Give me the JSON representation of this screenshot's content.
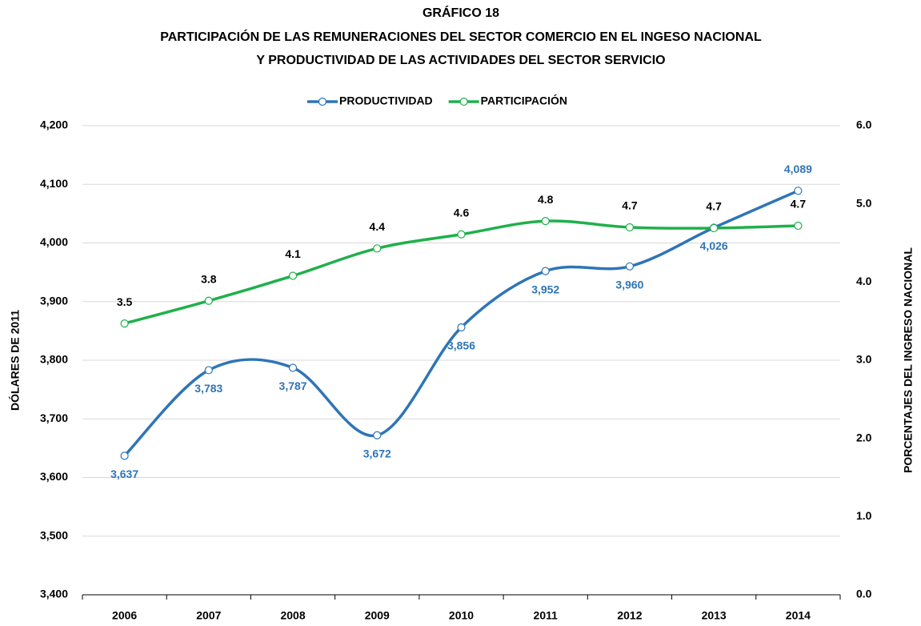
{
  "chart_data": {
    "type": "line",
    "title": [
      "GRÁFICO 18",
      "PARTICIPACIÓN DE LAS REMUNERACIONES DEL SECTOR COMERCIO EN EL INGESO NACIONAL",
      "Y PRODUCTIVIDAD DE LAS ACTIVIDADES DEL SECTOR SERVICIO"
    ],
    "y_label": "DÓLARES DE 2011",
    "y2_label": "PORCENTAJES DEL INGRESO NACIONAL",
    "categories": [
      "2006",
      "2007",
      "2008",
      "2009",
      "2010",
      "2011",
      "2012",
      "2013",
      "2014"
    ],
    "series": [
      {
        "name": "PRODUCTIVIDAD",
        "color": "#2e75b6",
        "label_color": "#2e75b6",
        "values": [
          3637,
          3783,
          3787,
          3672,
          3856,
          3952,
          3960,
          4026,
          4089
        ],
        "value_labels": [
          "3,637",
          "3,783",
          "3,787",
          "3,672",
          "3,856",
          "3,952",
          "3,960",
          "4,026",
          "4,089"
        ]
      },
      {
        "name": "PARTICIPACIÓN",
        "color": "#1fb04b",
        "label_color": "#000000",
        "axis": "y2",
        "values": [
          3.47,
          3.76,
          4.08,
          4.43,
          4.61,
          4.78,
          4.7,
          4.69,
          4.72
        ],
        "value_labels": [
          "3.5",
          "3.8",
          "4.1",
          "4.4",
          "4.6",
          "4.8",
          "4.7",
          "4.7",
          "4.7"
        ]
      }
    ],
    "ylim": [
      3400,
      4200
    ],
    "yticks": [
      {
        "value": 3400,
        "label": "3,400"
      },
      {
        "value": 3500,
        "label": "3,500"
      },
      {
        "value": 3600,
        "label": "3,600"
      },
      {
        "value": 3700,
        "label": "3,700"
      },
      {
        "value": 3800,
        "label": "3,800"
      },
      {
        "value": 3900,
        "label": "3,900"
      },
      {
        "value": 4000,
        "label": "4,000"
      },
      {
        "value": 4100,
        "label": "4,100"
      },
      {
        "value": 4200,
        "label": "4,200"
      }
    ],
    "y2lim": [
      0,
      6
    ],
    "y2ticks": [
      {
        "value": 0,
        "label": "0.0"
      },
      {
        "value": 1,
        "label": "1.0"
      },
      {
        "value": 2,
        "label": "2.0"
      },
      {
        "value": 3,
        "label": "3.0"
      },
      {
        "value": 4,
        "label": "4.0"
      },
      {
        "value": 5,
        "label": "5.0"
      },
      {
        "value": 6,
        "label": "6.0"
      }
    ],
    "grid": true,
    "smooth": true,
    "legend": "top"
  }
}
